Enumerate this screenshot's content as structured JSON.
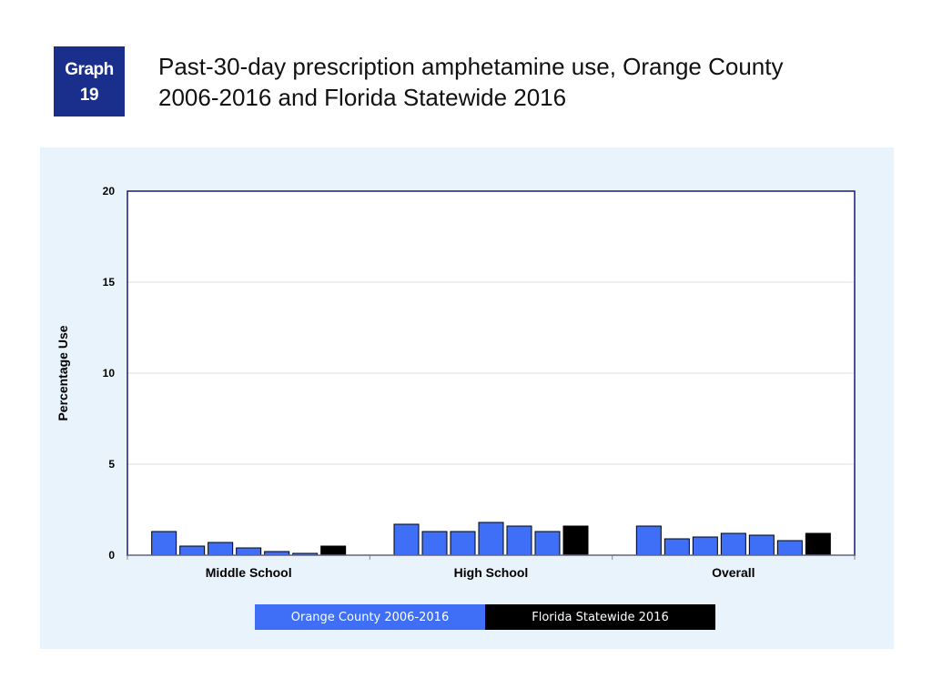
{
  "badge": {
    "line1": "Graph",
    "line2": "19"
  },
  "title": {
    "line1": "Past-30-day prescription amphetamine use, Orange County",
    "line2": "2006-2016 and Florida Statewide 2016"
  },
  "colors": {
    "badge_bg": "#1a2f8c",
    "panel_bg": "#e8f3fc",
    "orange_county": "#3f6ff7",
    "florida": "#000000",
    "axis": "#1a1a7a"
  },
  "chart_data": {
    "type": "bar",
    "ylabel": "Percentage Use",
    "xlabel": "",
    "ylim": [
      0,
      20
    ],
    "yticks": [
      "0",
      "5",
      "10",
      "15",
      "20"
    ],
    "grid": true,
    "legend_position": "bottom",
    "categories": [
      "Middle School",
      "High School",
      "Overall"
    ],
    "series": [
      {
        "name": "Orange County 2006-2016",
        "color": "#3f6ff7",
        "values": [
          [
            1.3,
            0.5,
            0.7,
            0.4,
            0.2,
            0.1
          ],
          [
            1.7,
            1.3,
            1.3,
            1.8,
            1.6,
            1.3
          ],
          [
            1.6,
            0.9,
            1.0,
            1.2,
            1.1,
            0.8
          ]
        ]
      },
      {
        "name": "Florida Statewide 2016",
        "color": "#000000",
        "values": [
          0.5,
          1.6,
          1.2
        ]
      }
    ]
  }
}
